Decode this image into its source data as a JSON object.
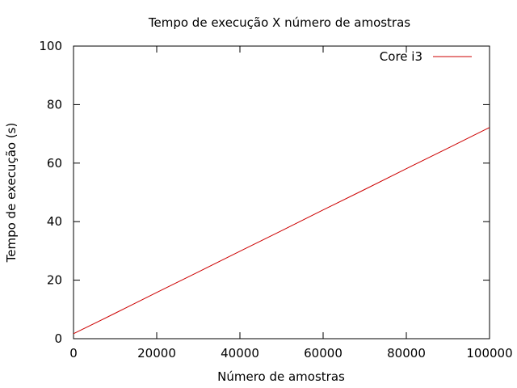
{
  "chart_data": {
    "type": "line",
    "title": "Tempo de execução X número de amostras",
    "xlabel": "Número de amostras",
    "ylabel": "Tempo de execução (s)",
    "xlim": [
      0,
      100000
    ],
    "ylim": [
      0,
      100
    ],
    "x_ticks": [
      0,
      20000,
      40000,
      60000,
      80000,
      100000
    ],
    "y_ticks": [
      0,
      20,
      40,
      60,
      80,
      100
    ],
    "x_tick_labels": [
      "0",
      "20000",
      "40000",
      "60000",
      "80000",
      "100000"
    ],
    "y_tick_labels": [
      "0",
      "20",
      "40",
      "60",
      "80",
      "100"
    ],
    "grid": false,
    "legend_position": "top-right",
    "series": [
      {
        "name": "Core i3",
        "color": "#cc0000",
        "x": [
          0,
          10000,
          20000,
          30000,
          40000,
          50000,
          60000,
          70000,
          80000,
          90000,
          100000
        ],
        "y": [
          1.7,
          8.7,
          15.8,
          22.8,
          29.9,
          36.9,
          44.0,
          51.0,
          58.1,
          65.1,
          72.2
        ]
      }
    ]
  }
}
